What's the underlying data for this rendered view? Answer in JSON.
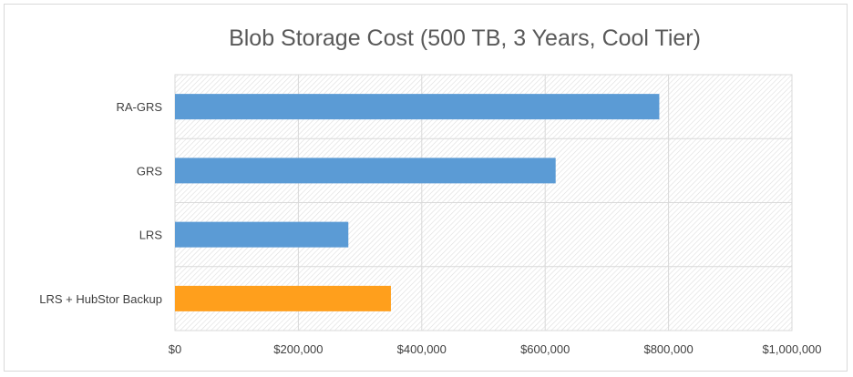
{
  "chart_data": {
    "type": "bar",
    "orientation": "horizontal",
    "title": "Blob Storage Cost (500 TB, 3 Years, Cool Tier)",
    "xlabel": "",
    "ylabel": "",
    "categories": [
      "RA-GRS",
      "GRS",
      "LRS",
      "LRS + HubStor Backup"
    ],
    "values": [
      785000,
      617000,
      281000,
      350000
    ],
    "bar_colors": [
      "#5b9bd5",
      "#5b9bd5",
      "#5b9bd5",
      "#ff9f1c"
    ],
    "xlim": [
      0,
      1000000
    ],
    "x_ticks": [
      0,
      200000,
      400000,
      600000,
      800000,
      1000000
    ],
    "x_tick_labels": [
      "$0",
      "$200,000",
      "$400,000",
      "$600,000",
      "$800,000",
      "$1,000,000"
    ],
    "grid": true,
    "plot_background": "hatched",
    "legend": "none"
  }
}
